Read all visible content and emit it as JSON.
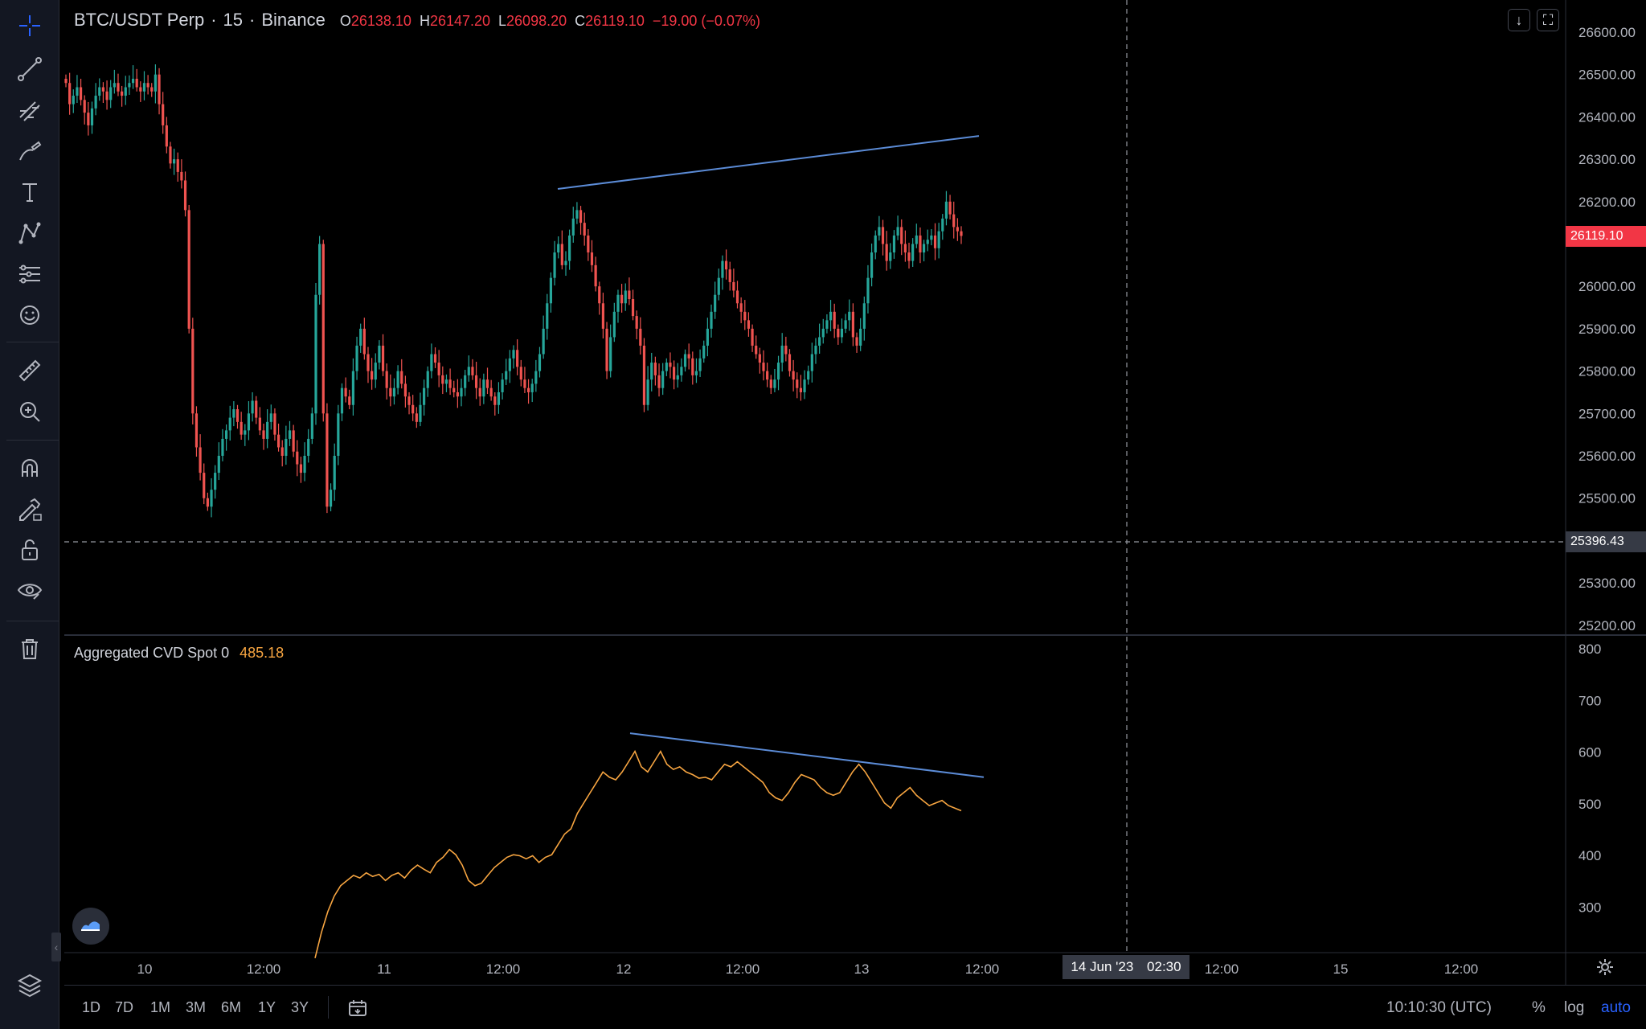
{
  "legend": {
    "symbol": "BTC/USDT Perp",
    "sep1": "·",
    "interval": "15",
    "sep2": "·",
    "exchange": "Binance",
    "open_label": "O",
    "open": "26138.10",
    "high_label": "H",
    "high": "26147.20",
    "low_label": "L",
    "low": "26098.20",
    "close_label": "C",
    "close": "26119.10",
    "change": "−19.00 (−0.07%)"
  },
  "indicator": {
    "name": "Aggregated CVD Spot 0",
    "value": "485.18"
  },
  "price_axis": {
    "ticks": [
      "26600.00",
      "26500.00",
      "26400.00",
      "26300.00",
      "26200.00",
      "26100.00",
      "26000.00",
      "25900.00",
      "25800.00",
      "25700.00",
      "25600.00",
      "25500.00",
      "25400.00",
      "25300.00",
      "25200.00"
    ],
    "last_price": "26119.10",
    "crosshair_price": "25396.43"
  },
  "cvd_axis": {
    "ticks": [
      "800",
      "700",
      "600",
      "500",
      "400",
      "300"
    ]
  },
  "time_axis": {
    "ticks": [
      "10",
      "12:00",
      "11",
      "12:00",
      "12",
      "12:00",
      "13",
      "12:00",
      "12:00",
      "15",
      "12:00"
    ],
    "crosshair_date": "14 Jun '23",
    "crosshair_time": "02:30"
  },
  "bottom_bar": {
    "ranges": [
      "1D",
      "7D",
      "1M",
      "3M",
      "6M",
      "1Y",
      "3Y"
    ],
    "clock": "10:10:30 (UTC)",
    "percent": "%",
    "log": "log",
    "auto": "auto"
  },
  "colors": {
    "up": "#26a69a",
    "down": "#ef5350",
    "trendline": "#5b8bd6",
    "cvd": "#f7a541",
    "last_price_bg": "#f23645",
    "background": "#000000"
  },
  "chart_data": {
    "type": "candlestick",
    "interval": "15",
    "price_series_close": [
      26480,
      26430,
      26450,
      26470,
      26440,
      26410,
      26380,
      26420,
      26450,
      26470,
      26460,
      26440,
      26470,
      26480,
      26460,
      26450,
      26470,
      26480,
      26490,
      26470,
      26460,
      26480,
      26470,
      26460,
      26500,
      26430,
      26380,
      26330,
      26290,
      26300,
      26270,
      26250,
      26180,
      25900,
      25700,
      25620,
      25560,
      25500,
      25480,
      25520,
      25560,
      25600,
      25640,
      25660,
      25690,
      25710,
      25680,
      25650,
      25660,
      25700,
      25730,
      25690,
      25660,
      25640,
      25680,
      25700,
      25650,
      25620,
      25600,
      25640,
      25660,
      25610,
      25580,
      25560,
      25600,
      25640,
      25700,
      25980,
      26100,
      25700,
      25480,
      25520,
      25600,
      25700,
      25760,
      25740,
      25720,
      25800,
      25860,
      25900,
      25840,
      25800,
      25780,
      25820,
      25860,
      25800,
      25760,
      25740,
      25760,
      25800,
      25770,
      25740,
      25720,
      25700,
      25680,
      25720,
      25760,
      25800,
      25840,
      25820,
      25790,
      25770,
      25780,
      25760,
      25750,
      25740,
      25760,
      25790,
      25810,
      25790,
      25760,
      25740,
      25780,
      25760,
      25740,
      25720,
      25750,
      25780,
      25800,
      25830,
      25850,
      25810,
      25780,
      25760,
      25750,
      25770,
      25800,
      25840,
      25900,
      25960,
      26020,
      26080,
      26100,
      26050,
      26060,
      26120,
      26160,
      26180,
      26150,
      26120,
      26080,
      26050,
      26000,
      25960,
      25900,
      25800,
      25880,
      25940,
      25980,
      25960,
      25990,
      25970,
      25930,
      25900,
      25860,
      25720,
      25780,
      25820,
      25790,
      25760,
      25800,
      25820,
      25810,
      25780,
      25790,
      25810,
      25840,
      25830,
      25790,
      25800,
      25830,
      25860,
      25900,
      25940,
      25980,
      26020,
      26060,
      26040,
      26010,
      25990,
      25960,
      25940,
      25920,
      25900,
      25860,
      25840,
      25820,
      25800,
      25780,
      25760,
      25780,
      25820,
      25860,
      25840,
      25800,
      25780,
      25760,
      25750,
      25780,
      25800,
      25840,
      25860,
      25880,
      25900,
      25920,
      25940,
      25900,
      25880,
      25900,
      25920,
      25940,
      25880,
      25860,
      25900,
      25960,
      26020,
      26080,
      26120,
      26140,
      26100,
      26060,
      26080,
      26120,
      26140,
      26100,
      26080,
      26060,
      26100,
      26120,
      26080,
      26100,
      26110,
      26120,
      26090,
      26130,
      26160,
      26200,
      26170,
      26140,
      26130,
      26119
    ],
    "cvd_series": [
      200,
      250,
      290,
      320,
      340,
      350,
      360,
      355,
      365,
      358,
      362,
      350,
      360,
      365,
      355,
      370,
      380,
      372,
      365,
      385,
      395,
      410,
      400,
      380,
      350,
      340,
      345,
      360,
      375,
      385,
      395,
      400,
      398,
      392,
      398,
      385,
      395,
      400,
      420,
      440,
      450,
      480,
      500,
      520,
      540,
      560,
      550,
      545,
      560,
      580,
      600,
      570,
      560,
      580,
      600,
      575,
      565,
      570,
      560,
      555,
      548,
      550,
      545,
      560,
      575,
      570,
      580,
      570,
      560,
      550,
      540,
      520,
      510,
      505,
      520,
      540,
      555,
      550,
      545,
      530,
      520,
      515,
      520,
      540,
      560,
      575,
      560,
      540,
      520,
      500,
      490,
      510,
      520,
      530,
      515,
      505,
      495,
      500,
      505,
      495,
      490,
      485
    ],
    "price_ylim": [
      25200,
      26600
    ],
    "cvd_ylim": [
      250,
      800
    ],
    "trendline_price": [
      {
        "time": "12 06:00",
        "price": 26230
      },
      {
        "time": "13 12:00",
        "price": 26355
      }
    ],
    "trendline_cvd": [
      {
        "time": "12 00:00",
        "value": 635
      },
      {
        "time": "13 12:00",
        "value": 550
      }
    ]
  }
}
